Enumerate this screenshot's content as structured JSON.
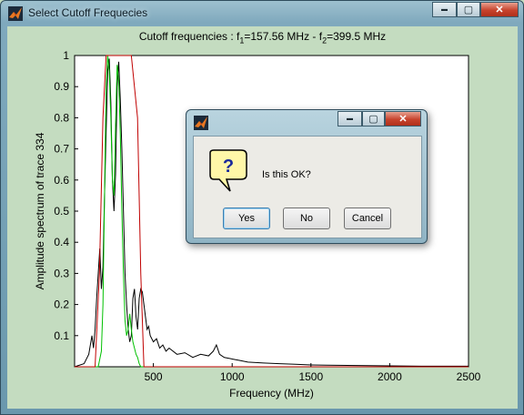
{
  "window": {
    "title": "Select Cutoff Frequecies",
    "controls": {
      "minimize": "▬",
      "maximize": "▢",
      "close": "✕"
    }
  },
  "figure": {
    "title_prefix": "Cutoff frequencies : f",
    "f1_sub": "1",
    "f1_text": "=157.56 MHz - f",
    "f2_sub": "2",
    "f2_text": "=399.5 MHz"
  },
  "chart_data": {
    "type": "line",
    "xlabel": "Frequency (MHz)",
    "ylabel": "Amplitude spectrum of trace 334",
    "xlim": [
      0,
      2500
    ],
    "ylim": [
      0,
      1
    ],
    "xticks": [
      "500",
      "1000",
      "1500",
      "2000",
      "2500"
    ],
    "yticks": [
      "0.1",
      "0.2",
      "0.3",
      "0.4",
      "0.5",
      "0.6",
      "0.7",
      "0.8",
      "0.9",
      "1"
    ],
    "series": [
      {
        "color": "#000000",
        "x": [
          0,
          60,
          90,
          110,
          120,
          130,
          140,
          150,
          160,
          170,
          180,
          190,
          200,
          210,
          220,
          230,
          240,
          250,
          260,
          270,
          280,
          290,
          300,
          310,
          320,
          330,
          340,
          350,
          360,
          370,
          380,
          390,
          400,
          410,
          420,
          430,
          440,
          450,
          460,
          470,
          480,
          500,
          520,
          540,
          560,
          580,
          600,
          650,
          700,
          750,
          800,
          850,
          880,
          900,
          920,
          950,
          1000,
          1050,
          1100,
          1200,
          1300,
          1400,
          1500,
          1600,
          1800,
          2000,
          2200,
          2500
        ],
        "y": [
          0,
          0.01,
          0.04,
          0.1,
          0.06,
          0.12,
          0.22,
          0.3,
          0.38,
          0.25,
          0.32,
          0.55,
          0.75,
          0.95,
          0.99,
          0.85,
          0.6,
          0.5,
          0.62,
          0.9,
          0.98,
          0.86,
          0.7,
          0.5,
          0.3,
          0.2,
          0.12,
          0.08,
          0.1,
          0.22,
          0.25,
          0.16,
          0.12,
          0.22,
          0.25,
          0.24,
          0.2,
          0.16,
          0.12,
          0.13,
          0.1,
          0.08,
          0.09,
          0.06,
          0.07,
          0.05,
          0.06,
          0.04,
          0.045,
          0.03,
          0.04,
          0.035,
          0.05,
          0.07,
          0.04,
          0.03,
          0.025,
          0.02,
          0.015,
          0.012,
          0.01,
          0.008,
          0.006,
          0.005,
          0.004,
          0.003,
          0.002,
          0.002
        ]
      },
      {
        "color": "#00c000",
        "x": [
          0,
          150,
          170,
          180,
          190,
          200,
          210,
          220,
          230,
          240,
          250,
          260,
          270,
          280,
          290,
          300,
          310,
          320,
          330,
          340,
          350,
          360,
          370,
          380,
          390,
          400,
          410,
          420,
          2500
        ],
        "y": [
          0,
          0,
          0.05,
          0.2,
          0.55,
          0.9,
          1.0,
          0.95,
          0.8,
          0.6,
          0.55,
          0.78,
          0.97,
          0.92,
          0.75,
          0.5,
          0.3,
          0.15,
          0.1,
          0.12,
          0.17,
          0.12,
          0.08,
          0.06,
          0.04,
          0.03,
          0.01,
          0,
          0
        ]
      },
      {
        "color": "#c00000",
        "x": [
          0,
          130,
          157.56,
          180,
          200,
          360,
          399.5,
          420,
          440,
          2500
        ],
        "y": [
          0,
          0,
          0.3,
          0.8,
          1.0,
          1.0,
          0.8,
          0.3,
          0,
          0
        ]
      }
    ],
    "grid": false
  },
  "dialog": {
    "controls": {
      "minimize": "▬",
      "maximize": "▢",
      "close": "✕"
    },
    "icon_glyph": "?",
    "message": "Is this OK?",
    "buttons": {
      "yes": "Yes",
      "no": "No",
      "cancel": "Cancel"
    }
  }
}
